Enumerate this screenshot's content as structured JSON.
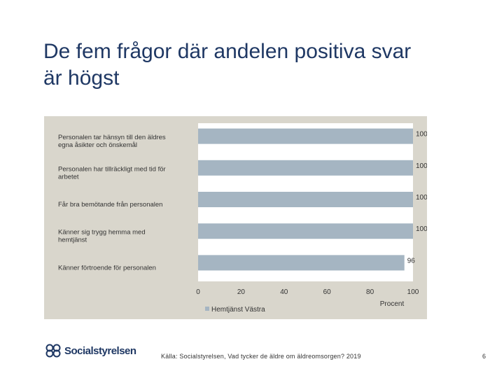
{
  "slide": {
    "title_line1": "De fem frågor där andelen positiva svar",
    "title_line2": "är högst",
    "source": "Källa: Socialstyrelsen, Vad tycker de äldre om äldreomsorgen? 2019",
    "page_number": "6",
    "logo_text": "Socialstyrelsen"
  },
  "chart_data": {
    "type": "bar",
    "orientation": "horizontal",
    "categories": [
      [
        "Personalen tar hänsyn till den äldres",
        "egna åsikter och önskemål"
      ],
      [
        "Personalen har tillräckligt med tid för",
        "arbetet"
      ],
      [
        "Får bra bemötande från personalen"
      ],
      [
        "Känner sig trygg hemma med",
        "hemtjänst"
      ],
      [
        "Känner förtroende för personalen"
      ]
    ],
    "series": [
      {
        "name": "Hemtjänst Västra",
        "values": [
          100,
          100,
          100,
          100,
          96
        ]
      }
    ],
    "xlim": [
      0,
      100
    ],
    "xticks": [
      0,
      20,
      40,
      60,
      80,
      100
    ],
    "xlabel": "Procent",
    "legend": "bottom-left",
    "colors": {
      "bar": "#a5b5c2",
      "background": "#d9d6cc",
      "plot": "#ffffff"
    }
  }
}
